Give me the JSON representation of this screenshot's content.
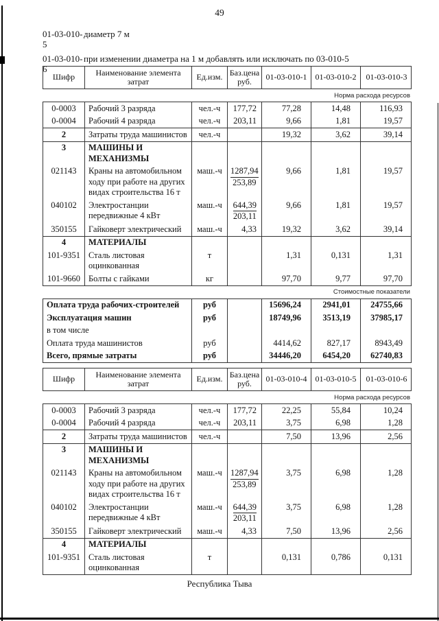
{
  "page": {
    "number": "49",
    "footer": "Республика Тыва",
    "ink_color": "#141414",
    "paper_color": "#ffffff"
  },
  "intro": [
    {
      "code": "01-03-010-5",
      "text": "диаметр 7 м"
    },
    {
      "code": "01-03-010-6",
      "text": "при изменении диаметра на 1 м добавлять или исключать по 03-010-5"
    }
  ],
  "tables": [
    {
      "header": {
        "code": "Шифр",
        "name": "Наименование элемента затрат",
        "unit": "Ед.изм.",
        "price": "Баз.цена руб.",
        "cols": [
          "01-03-010-1",
          "01-03-010-2",
          "01-03-010-3"
        ]
      },
      "rows": [
        {
          "kind": "note",
          "text": "Норма расхода ресурсов"
        },
        {
          "kind": "res",
          "bt": true,
          "code": "0-0003",
          "name": "Рабочий 3 разряда",
          "unit": "чел.-ч",
          "price": "177,72",
          "v": [
            "77,28",
            "14,48",
            "116,93"
          ]
        },
        {
          "kind": "res",
          "code": "0-0004",
          "name": "Рабочий 4 разряда",
          "unit": "чел.-ч",
          "price": "203,11",
          "v": [
            "9,66",
            "1,81",
            "19,57"
          ]
        },
        {
          "kind": "res",
          "bt": true,
          "boldCode": true,
          "code": "2",
          "name": "Затраты труда машинистов",
          "unit": "чел.-ч",
          "price": "",
          "v": [
            "19,32",
            "3,62",
            "39,14"
          ]
        },
        {
          "kind": "section",
          "bt": true,
          "code": "3",
          "name": "МАШИНЫ И МЕХАНИЗМЫ"
        },
        {
          "kind": "res",
          "code": "021143",
          "name": "Краны на автомобильном ходу при работе на других видах строительства 16 т",
          "unit": "маш.-ч",
          "price": "1287,94",
          "price2": "253,89",
          "v": [
            "9,66",
            "1,81",
            "19,57"
          ]
        },
        {
          "kind": "res",
          "code": "040102",
          "name": "Электростанции передвижные 4 кВт",
          "unit": "маш.-ч",
          "price": "644,39",
          "price2": "203,11",
          "v": [
            "9,66",
            "1,81",
            "19,57"
          ]
        },
        {
          "kind": "res",
          "code": "350155",
          "name": "Гайковерт электрический",
          "unit": "маш.-ч",
          "price": "4,33",
          "v": [
            "19,32",
            "3,62",
            "39,14"
          ]
        },
        {
          "kind": "section",
          "bt": true,
          "code": "4",
          "name": "МАТЕРИАЛЫ"
        },
        {
          "kind": "res",
          "code": "101-9351",
          "name": "Сталь листовая оцинкованная",
          "unit": "т",
          "price": "",
          "v": [
            "1,31",
            "0,131",
            "1,31"
          ]
        },
        {
          "kind": "res",
          "code": "101-9660",
          "name": "Болты с гайками",
          "unit": "кг",
          "price": "",
          "v": [
            "97,70",
            "9,77",
            "97,70"
          ]
        },
        {
          "kind": "note",
          "bt": true,
          "text": "Стоимостные показатели"
        },
        {
          "kind": "cost",
          "bt": true,
          "bold": true,
          "name": "Оплата труда рабочих-строителей",
          "unit": "руб",
          "v": [
            "15696,24",
            "2941,01",
            "24755,66"
          ]
        },
        {
          "kind": "cost",
          "bold": true,
          "name": "Эксплуатация машин",
          "unit": "руб",
          "v": [
            "18749,96",
            "3513,19",
            "37985,17"
          ]
        },
        {
          "kind": "cost",
          "name": "в том числе",
          "unit": "",
          "v": [
            "",
            "",
            ""
          ]
        },
        {
          "kind": "cost",
          "name": "Оплата труда машинистов",
          "unit": "руб",
          "v": [
            "4414,62",
            "827,17",
            "8943,49"
          ]
        },
        {
          "kind": "cost",
          "bold": true,
          "name": "Всего, прямые затраты",
          "unit": "руб",
          "v": [
            "34446,20",
            "6454,20",
            "62740,83"
          ]
        }
      ]
    },
    {
      "header": {
        "code": "Шифр",
        "name": "Наименование элемента затрат",
        "unit": "Ед.изм.",
        "price": "Баз.цена руб.",
        "cols": [
          "01-03-010-4",
          "01-03-010-5",
          "01-03-010-6"
        ]
      },
      "rows": [
        {
          "kind": "note",
          "text": "Норма расхода ресурсов"
        },
        {
          "kind": "res",
          "bt": true,
          "code": "0-0003",
          "name": "Рабочий 3 разряда",
          "unit": "чел.-ч",
          "price": "177,72",
          "v": [
            "22,25",
            "55,84",
            "10,24"
          ]
        },
        {
          "kind": "res",
          "code": "0-0004",
          "name": "Рабочий 4 разряда",
          "unit": "чел.-ч",
          "price": "203,11",
          "v": [
            "3,75",
            "6,98",
            "1,28"
          ]
        },
        {
          "kind": "res",
          "bt": true,
          "boldCode": true,
          "code": "2",
          "name": "Затраты труда машинистов",
          "unit": "чел.-ч",
          "price": "",
          "v": [
            "7,50",
            "13,96",
            "2,56"
          ]
        },
        {
          "kind": "section",
          "bt": true,
          "code": "3",
          "name": "МАШИНЫ И МЕХАНИЗМЫ"
        },
        {
          "kind": "res",
          "code": "021143",
          "name": "Краны на автомобильном ходу при работе на других видах строительства 16 т",
          "unit": "маш.-ч",
          "price": "1287,94",
          "price2": "253,89",
          "v": [
            "3,75",
            "6,98",
            "1,28"
          ]
        },
        {
          "kind": "res",
          "code": "040102",
          "name": "Электростанции передвижные 4 кВт",
          "unit": "маш.-ч",
          "price": "644,39",
          "price2": "203,11",
          "v": [
            "3,75",
            "6,98",
            "1,28"
          ]
        },
        {
          "kind": "res",
          "code": "350155",
          "name": "Гайковерт электрический",
          "unit": "маш.-ч",
          "price": "4,33",
          "v": [
            "7,50",
            "13,96",
            "2,56"
          ]
        },
        {
          "kind": "section",
          "bt": true,
          "code": "4",
          "name": "МАТЕРИАЛЫ"
        },
        {
          "kind": "res",
          "code": "101-9351",
          "name": "Сталь листовая оцинкованная",
          "unit": "т",
          "price": "",
          "v": [
            "0,131",
            "0,786",
            "0,131"
          ]
        }
      ]
    }
  ]
}
